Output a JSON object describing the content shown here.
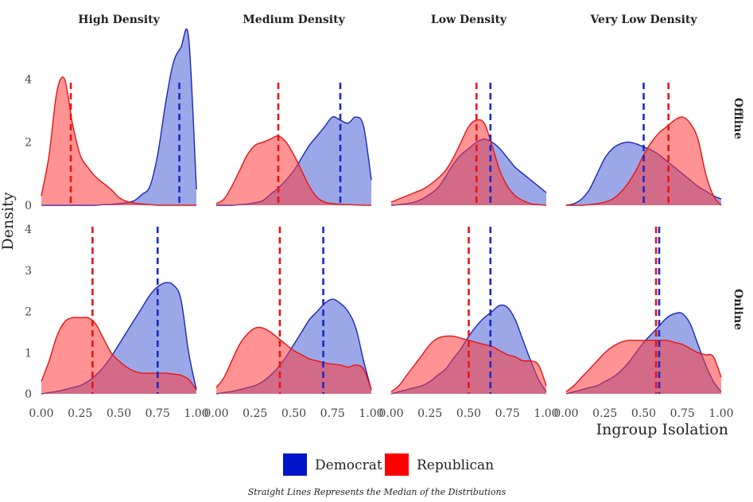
{
  "chart_data": {
    "type": "area",
    "title": "",
    "facet_columns": [
      "High Density",
      "Medium Density",
      "Low Density",
      "Very Low Density"
    ],
    "facet_rows": [
      "Offline",
      "Online"
    ],
    "xlabel": "Ingroup Isolation",
    "ylabel": "Density",
    "xlim": [
      0,
      1
    ],
    "x_ticks": [
      "0.00",
      "0.25",
      "0.50",
      "0.75",
      "1.00"
    ],
    "y_ticks": {
      "Offline": [
        "0",
        "2",
        "4"
      ],
      "Online": [
        "0",
        "1",
        "2",
        "3",
        "4"
      ]
    },
    "ylim": {
      "Offline": [
        0,
        5.5
      ],
      "Online": [
        0,
        4.1
      ]
    },
    "legend": [
      {
        "name": "Democrat",
        "color": "#0015c8"
      },
      {
        "name": "Republican",
        "color": "#ff0000"
      }
    ],
    "colors": {
      "dem_fill": "#4a5fd4",
      "dem_line": "#1a28b8",
      "rep_fill": "#ff3b3b",
      "rep_line": "#e81414"
    },
    "x_grid": [
      0.0,
      0.05,
      0.1,
      0.15,
      0.2,
      0.25,
      0.3,
      0.35,
      0.4,
      0.45,
      0.5,
      0.55,
      0.6,
      0.65,
      0.7,
      0.75,
      0.8,
      0.85,
      0.9,
      0.95,
      1.0
    ],
    "panels": [
      {
        "row": "Offline",
        "col": "High Density",
        "dem": [
          0.0,
          0.0,
          0.0,
          0.0,
          0.0,
          0.0,
          0.0,
          0.0,
          0.02,
          0.03,
          0.05,
          0.08,
          0.15,
          0.35,
          0.6,
          1.6,
          3.2,
          4.5,
          5.0,
          5.3,
          0.5
        ],
        "rep": [
          0.3,
          1.6,
          3.6,
          4.0,
          2.6,
          1.6,
          1.2,
          0.9,
          0.7,
          0.5,
          0.25,
          0.12,
          0.07,
          0.04,
          0.02,
          0.0,
          0.0,
          0.0,
          0.0,
          0.0,
          0.0
        ],
        "dem_median": 0.89,
        "rep_median": 0.19
      },
      {
        "row": "Offline",
        "col": "Medium Density",
        "dem": [
          0.0,
          0.0,
          0.0,
          0.02,
          0.04,
          0.08,
          0.15,
          0.35,
          0.55,
          0.8,
          1.1,
          1.5,
          1.9,
          2.2,
          2.5,
          2.8,
          2.7,
          2.6,
          2.8,
          2.5,
          0.8
        ],
        "rep": [
          0.05,
          0.2,
          0.6,
          1.1,
          1.6,
          1.9,
          2.0,
          2.1,
          2.2,
          2.0,
          1.6,
          1.1,
          0.6,
          0.25,
          0.1,
          0.05,
          0.03,
          0.02,
          0.01,
          0.0,
          0.0
        ],
        "dem_median": 0.8,
        "rep_median": 0.4
      },
      {
        "row": "Offline",
        "col": "Low Density",
        "dem": [
          0.0,
          0.02,
          0.05,
          0.1,
          0.2,
          0.35,
          0.55,
          0.9,
          1.3,
          1.6,
          1.8,
          2.0,
          2.1,
          2.0,
          1.8,
          1.5,
          1.2,
          1.0,
          0.8,
          0.6,
          0.4
        ],
        "rep": [
          0.1,
          0.2,
          0.3,
          0.4,
          0.5,
          0.65,
          0.85,
          1.1,
          1.5,
          2.0,
          2.5,
          2.7,
          2.6,
          1.9,
          1.1,
          0.6,
          0.3,
          0.15,
          0.05,
          0.02,
          0.0
        ],
        "dem_median": 0.64,
        "rep_median": 0.55
      },
      {
        "row": "Offline",
        "col": "Very Low Density",
        "dem": [
          0.0,
          0.05,
          0.2,
          0.5,
          1.0,
          1.5,
          1.8,
          1.95,
          2.0,
          1.95,
          1.85,
          1.75,
          1.6,
          1.4,
          1.2,
          1.0,
          0.8,
          0.6,
          0.45,
          0.3,
          0.2
        ],
        "rep": [
          0.0,
          0.0,
          0.0,
          0.02,
          0.05,
          0.1,
          0.2,
          0.4,
          0.7,
          1.1,
          1.6,
          2.0,
          2.3,
          2.5,
          2.7,
          2.8,
          2.6,
          2.1,
          1.0,
          0.3,
          0.0
        ],
        "dem_median": 0.5,
        "rep_median": 0.66
      },
      {
        "row": "Online",
        "col": "High Density",
        "dem": [
          0.0,
          0.03,
          0.06,
          0.1,
          0.15,
          0.2,
          0.3,
          0.45,
          0.65,
          0.9,
          1.2,
          1.5,
          1.8,
          2.1,
          2.4,
          2.6,
          2.7,
          2.65,
          2.3,
          1.0,
          0.1
        ],
        "rep": [
          0.3,
          0.8,
          1.4,
          1.75,
          1.85,
          1.85,
          1.85,
          1.7,
          1.35,
          1.0,
          0.8,
          0.65,
          0.55,
          0.5,
          0.5,
          0.5,
          0.5,
          0.48,
          0.45,
          0.35,
          0.1
        ],
        "dem_median": 0.75,
        "rep_median": 0.33
      },
      {
        "row": "Online",
        "col": "Medium Density",
        "dem": [
          0.0,
          0.03,
          0.06,
          0.1,
          0.15,
          0.2,
          0.3,
          0.45,
          0.65,
          0.9,
          1.2,
          1.5,
          1.8,
          2.0,
          2.2,
          2.3,
          2.2,
          2.0,
          1.6,
          0.8,
          0.1
        ],
        "rep": [
          0.15,
          0.4,
          0.8,
          1.2,
          1.45,
          1.6,
          1.6,
          1.5,
          1.35,
          1.2,
          1.05,
          0.95,
          0.85,
          0.8,
          0.75,
          0.72,
          0.7,
          0.65,
          0.7,
          0.6,
          0.1
        ],
        "dem_median": 0.69,
        "rep_median": 0.41
      },
      {
        "row": "Online",
        "col": "Low Density",
        "dem": [
          0.0,
          0.05,
          0.1,
          0.15,
          0.2,
          0.3,
          0.45,
          0.6,
          0.85,
          1.1,
          1.4,
          1.65,
          1.85,
          2.0,
          2.15,
          2.1,
          1.8,
          1.3,
          0.8,
          0.35,
          0.05
        ],
        "rep": [
          0.05,
          0.2,
          0.45,
          0.7,
          0.95,
          1.2,
          1.35,
          1.4,
          1.4,
          1.35,
          1.3,
          1.25,
          1.2,
          1.15,
          1.05,
          0.95,
          0.9,
          0.8,
          0.8,
          0.7,
          0.2
        ],
        "dem_median": 0.64,
        "rep_median": 0.5
      },
      {
        "row": "Online",
        "col": "Very Low Density",
        "dem": [
          0.0,
          0.05,
          0.1,
          0.15,
          0.2,
          0.3,
          0.4,
          0.55,
          0.75,
          1.0,
          1.25,
          1.45,
          1.65,
          1.85,
          1.95,
          1.95,
          1.7,
          1.2,
          0.7,
          0.3,
          0.05
        ],
        "rep": [
          0.05,
          0.2,
          0.4,
          0.6,
          0.8,
          1.0,
          1.15,
          1.25,
          1.3,
          1.3,
          1.3,
          1.3,
          1.3,
          1.3,
          1.25,
          1.2,
          1.1,
          1.0,
          0.95,
          0.9,
          0.4
        ],
        "dem_median": 0.6,
        "rep_median": 0.58
      }
    ],
    "caption": "Straight Lines Represents the Median of the Distributions"
  }
}
